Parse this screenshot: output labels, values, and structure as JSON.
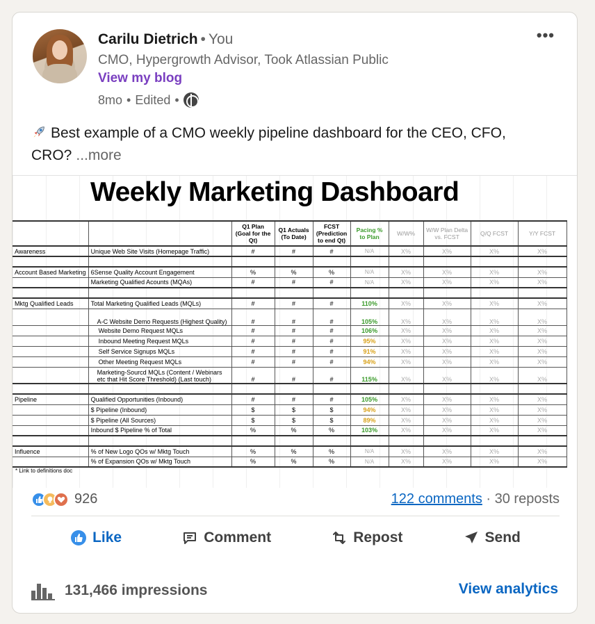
{
  "author": {
    "name": "Carilu Dietrich",
    "relation": "You",
    "headline": "CMO, Hypergrowth Advisor, Took Atlassian Public",
    "blog_link": "View my blog",
    "posted": "8mo",
    "edited": "Edited"
  },
  "post": {
    "text": "Best example of a CMO weekly pipeline dashboard for the CEO, CFO, CRO?",
    "more": "...more",
    "icons": {
      "emoji": "rocket-icon",
      "menu": "more-options-icon",
      "visibility": "globe-icon"
    }
  },
  "dashboard": {
    "title": "Weekly Marketing Dashboard",
    "headers": [
      "",
      "",
      "Q1 Plan (Goal for the Qt)",
      "Q1 Actuals (To Date)",
      "FCST (Prediction to end Qt)",
      "Pacing % to Plan",
      "W/W%",
      "W/W Plan Delta vs. FCST",
      "Q/Q FCST",
      "Y/Y FCST"
    ],
    "rows": [
      {
        "cat": "Awareness",
        "metric": "Unique Web Site Visits (Homepage Traffic)",
        "plan": "#",
        "act": "#",
        "fcst": "#",
        "pace": "N/A",
        "ww": "X%",
        "delta": "X%",
        "qq": "X%",
        "yy": "X%"
      },
      {
        "cat": "",
        "metric": "",
        "plan": "",
        "act": "",
        "fcst": "",
        "pace": "",
        "ww": "",
        "delta": "",
        "qq": "",
        "yy": ""
      },
      {
        "cat": "Account Based Marketing",
        "metric": "6Sense Quality Account Engagement",
        "plan": "%",
        "act": "%",
        "fcst": "%",
        "pace": "N/A",
        "ww": "X%",
        "delta": "X%",
        "qq": "X%",
        "yy": "X%"
      },
      {
        "cat": "",
        "metric": "Marketing Qualified Acounts (MQAs)",
        "plan": "#",
        "act": "#",
        "fcst": "#",
        "pace": "N/A",
        "ww": "X%",
        "delta": "X%",
        "qq": "X%",
        "yy": "X%"
      },
      {
        "cat": "",
        "metric": "",
        "plan": "",
        "act": "",
        "fcst": "",
        "pace": "",
        "ww": "",
        "delta": "",
        "qq": "",
        "yy": ""
      },
      {
        "cat": "Mktg Qualified Leads",
        "metric": "Total Marketing Qualified Leads (MQLs)",
        "plan": "#",
        "act": "#",
        "fcst": "#",
        "pace": "110%",
        "ww": "X%",
        "delta": "X%",
        "qq": "X%",
        "yy": "X%"
      },
      {
        "cat": "",
        "metric": "A-C Website Demo Requests (Highest Quality)",
        "plan": "#",
        "act": "#",
        "fcst": "#",
        "pace": "105%",
        "ww": "X%",
        "delta": "X%",
        "qq": "X%",
        "yy": "X%"
      },
      {
        "cat": "",
        "metric": "Website Demo Request MQLs",
        "plan": "#",
        "act": "#",
        "fcst": "#",
        "pace": "106%",
        "ww": "X%",
        "delta": "X%",
        "qq": "X%",
        "yy": "X%"
      },
      {
        "cat": "",
        "metric": "Inbound Meeting Request MQLs",
        "plan": "#",
        "act": "#",
        "fcst": "#",
        "pace": "95%",
        "ww": "X%",
        "delta": "X%",
        "qq": "X%",
        "yy": "X%"
      },
      {
        "cat": "",
        "metric": "Self Service Signups MQLs",
        "plan": "#",
        "act": "#",
        "fcst": "#",
        "pace": "91%",
        "ww": "X%",
        "delta": "X%",
        "qq": "X%",
        "yy": "X%"
      },
      {
        "cat": "",
        "metric": "Other Meeting Request MQLs",
        "plan": "#",
        "act": "#",
        "fcst": "#",
        "pace": "94%",
        "ww": "X%",
        "delta": "X%",
        "qq": "X%",
        "yy": "X%"
      },
      {
        "cat": "",
        "metric": "Marketing-Sourcd MQLs (Content / Webinars etc that Hit Score Threshold) (Last touch)",
        "plan": "#",
        "act": "#",
        "fcst": "#",
        "pace": "115%",
        "ww": "X%",
        "delta": "X%",
        "qq": "X%",
        "yy": "X%"
      },
      {
        "cat": "",
        "metric": "",
        "plan": "",
        "act": "",
        "fcst": "",
        "pace": "",
        "ww": "",
        "delta": "",
        "qq": "",
        "yy": ""
      },
      {
        "cat": "Pipeline",
        "metric": "Qualified Opportunities (Inbound)",
        "plan": "#",
        "act": "#",
        "fcst": "#",
        "pace": "105%",
        "ww": "X%",
        "delta": "X%",
        "qq": "X%",
        "yy": "X%"
      },
      {
        "cat": "",
        "metric": "$ Pipeline (Inbound)",
        "plan": "$",
        "act": "$",
        "fcst": "$",
        "pace": "94%",
        "ww": "X%",
        "delta": "X%",
        "qq": "X%",
        "yy": "X%"
      },
      {
        "cat": "",
        "metric": "$ Pipeline (All Sources)",
        "plan": "$",
        "act": "$",
        "fcst": "$",
        "pace": "89%",
        "ww": "X%",
        "delta": "X%",
        "qq": "X%",
        "yy": "X%"
      },
      {
        "cat": "",
        "metric": "Inbound $ Pipeline % of Total",
        "plan": "%",
        "act": "%",
        "fcst": "%",
        "pace": "103%",
        "ww": "X%",
        "delta": "X%",
        "qq": "X%",
        "yy": "X%"
      },
      {
        "cat": "",
        "metric": "",
        "plan": "",
        "act": "",
        "fcst": "",
        "pace": "",
        "ww": "",
        "delta": "",
        "qq": "",
        "yy": ""
      },
      {
        "cat": "Influence",
        "metric": "% of New Logo QOs w/ Mktg Touch",
        "plan": "%",
        "act": "%",
        "fcst": "%",
        "pace": "N/A",
        "ww": "X%",
        "delta": "X%",
        "qq": "X%",
        "yy": "X%"
      },
      {
        "cat": "",
        "metric": "% of Expansion QOs w/ Mktg Touch",
        "plan": "%",
        "act": "%",
        "fcst": "%",
        "pace": "N/A",
        "ww": "X%",
        "delta": "X%",
        "qq": "X%",
        "yy": "X%"
      }
    ],
    "footnote": "* Link to definitions doc",
    "colors": {
      "good": "#3a9a2a",
      "warn": "#d9a21a",
      "muted": "#aaaaaa"
    }
  },
  "social": {
    "reactions_count": "926",
    "reaction_icons": [
      "like-icon",
      "insightful-icon",
      "love-icon"
    ],
    "comments": "122 comments",
    "reposts": "30 reposts"
  },
  "actions": {
    "like": "Like",
    "comment": "Comment",
    "repost": "Repost",
    "send": "Send"
  },
  "footer": {
    "impressions": "131,466 impressions",
    "analytics": "View analytics"
  },
  "colors": {
    "accent": "#0a66c2",
    "blog": "#7a3fc0",
    "text": "#191919",
    "muted": "#666666"
  }
}
